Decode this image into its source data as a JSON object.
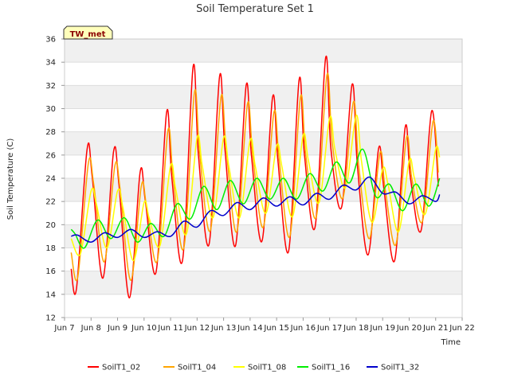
{
  "chart_data": {
    "type": "line",
    "title": "Soil Temperature Set 1",
    "xlabel": "Time",
    "ylabel": "Soil Temperature (C)",
    "site_label": "TW_met",
    "x_range": [
      7,
      22
    ],
    "ylim": [
      12,
      36
    ],
    "yticks": [
      12,
      14,
      16,
      18,
      20,
      22,
      24,
      26,
      28,
      30,
      32,
      34,
      36
    ],
    "xticks": [
      {
        "day": 7,
        "label": "Jun 7"
      },
      {
        "day": 8,
        "label": "Jun 8"
      },
      {
        "day": 9,
        "label": "Jun 9"
      },
      {
        "day": 10,
        "label": "Jun 10"
      },
      {
        "day": 11,
        "label": "Jun 11"
      },
      {
        "day": 12,
        "label": "Jun 12"
      },
      {
        "day": 13,
        "label": "Jun 13"
      },
      {
        "day": 14,
        "label": "Jun 14"
      },
      {
        "day": 15,
        "label": "Jun 15"
      },
      {
        "day": 16,
        "label": "Jun 16"
      },
      {
        "day": 17,
        "label": "Jun 17"
      },
      {
        "day": 18,
        "label": "Jun 18"
      },
      {
        "day": 19,
        "label": "Jun 19"
      },
      {
        "day": 20,
        "label": "Jun 20"
      },
      {
        "day": 21,
        "label": "Jun 21"
      },
      {
        "day": 22,
        "label": "Jun 22"
      }
    ],
    "grid": true,
    "legend_position": "bottom",
    "colors": {
      "band": "#f0f0f0",
      "grid": "#dddddd",
      "axis": "#cccccc"
    },
    "series": [
      {
        "name": "SoilT1_02",
        "color": "#ff0000",
        "points": [
          [
            7.25,
            16.2
          ],
          [
            7.45,
            14.5
          ],
          [
            7.85,
            26.5
          ],
          [
            8.05,
            24.0
          ],
          [
            8.45,
            15.4
          ],
          [
            8.85,
            26.3
          ],
          [
            9.05,
            23.5
          ],
          [
            9.45,
            13.7
          ],
          [
            9.85,
            24.5
          ],
          [
            10.05,
            22.0
          ],
          [
            10.45,
            15.9
          ],
          [
            10.85,
            29.7
          ],
          [
            11.05,
            24.0
          ],
          [
            11.45,
            16.9
          ],
          [
            11.85,
            33.6
          ],
          [
            12.05,
            26.0
          ],
          [
            12.45,
            18.3
          ],
          [
            12.85,
            32.8
          ],
          [
            13.05,
            26.5
          ],
          [
            13.45,
            18.2
          ],
          [
            13.85,
            32.0
          ],
          [
            14.05,
            26.0
          ],
          [
            14.45,
            18.6
          ],
          [
            14.85,
            31.0
          ],
          [
            15.05,
            25.5
          ],
          [
            15.45,
            17.7
          ],
          [
            15.85,
            32.5
          ],
          [
            16.05,
            26.0
          ],
          [
            16.45,
            19.8
          ],
          [
            16.85,
            34.4
          ],
          [
            17.05,
            26.5
          ],
          [
            17.45,
            21.5
          ],
          [
            17.85,
            32.1
          ],
          [
            18.05,
            25.0
          ],
          [
            18.45,
            17.4
          ],
          [
            18.85,
            26.6
          ],
          [
            19.05,
            23.0
          ],
          [
            19.45,
            16.9
          ],
          [
            19.85,
            28.4
          ],
          [
            20.05,
            24.0
          ],
          [
            20.45,
            19.5
          ],
          [
            20.85,
            29.8
          ],
          [
            21.1,
            23.3
          ]
        ]
      },
      {
        "name": "SoilT1_04",
        "color": "#ffa500",
        "points": [
          [
            7.25,
            17.6
          ],
          [
            7.5,
            15.5
          ],
          [
            7.9,
            25.3
          ],
          [
            8.1,
            23.5
          ],
          [
            8.5,
            16.8
          ],
          [
            8.9,
            25.1
          ],
          [
            9.1,
            23.0
          ],
          [
            9.5,
            15.2
          ],
          [
            9.9,
            23.4
          ],
          [
            10.1,
            21.5
          ],
          [
            10.5,
            16.9
          ],
          [
            10.9,
            28.1
          ],
          [
            11.1,
            24.0
          ],
          [
            11.5,
            18.0
          ],
          [
            11.9,
            31.4
          ],
          [
            12.1,
            26.0
          ],
          [
            12.5,
            19.5
          ],
          [
            12.9,
            31.0
          ],
          [
            13.1,
            26.5
          ],
          [
            13.5,
            19.4
          ],
          [
            13.9,
            30.4
          ],
          [
            14.1,
            26.0
          ],
          [
            14.5,
            19.8
          ],
          [
            14.9,
            29.7
          ],
          [
            15.1,
            25.5
          ],
          [
            15.5,
            19.0
          ],
          [
            15.9,
            31.0
          ],
          [
            16.1,
            26.0
          ],
          [
            16.5,
            20.7
          ],
          [
            16.9,
            32.9
          ],
          [
            17.1,
            27.0
          ],
          [
            17.5,
            22.3
          ],
          [
            17.9,
            30.6
          ],
          [
            18.1,
            25.0
          ],
          [
            18.5,
            18.8
          ],
          [
            18.9,
            26.2
          ],
          [
            19.1,
            23.0
          ],
          [
            19.5,
            18.3
          ],
          [
            19.9,
            27.5
          ],
          [
            20.1,
            24.0
          ],
          [
            20.5,
            20.3
          ],
          [
            20.9,
            28.9
          ],
          [
            21.1,
            24.5
          ]
        ]
      },
      {
        "name": "SoilT1_08",
        "color": "#ffff00",
        "points": [
          [
            7.25,
            18.8
          ],
          [
            7.6,
            17.5
          ],
          [
            8.0,
            22.9
          ],
          [
            8.2,
            21.8
          ],
          [
            8.6,
            18.0
          ],
          [
            9.0,
            22.9
          ],
          [
            9.2,
            21.5
          ],
          [
            9.6,
            16.9
          ],
          [
            10.0,
            21.9
          ],
          [
            10.2,
            20.5
          ],
          [
            10.6,
            18.2
          ],
          [
            11.0,
            25.1
          ],
          [
            11.2,
            23.0
          ],
          [
            11.6,
            19.2
          ],
          [
            12.0,
            27.5
          ],
          [
            12.2,
            25.0
          ],
          [
            12.6,
            20.6
          ],
          [
            13.0,
            27.5
          ],
          [
            13.2,
            25.0
          ],
          [
            13.6,
            20.6
          ],
          [
            14.0,
            27.3
          ],
          [
            14.2,
            25.0
          ],
          [
            14.6,
            21.0
          ],
          [
            15.0,
            26.8
          ],
          [
            15.2,
            25.0
          ],
          [
            15.6,
            20.7
          ],
          [
            16.0,
            27.7
          ],
          [
            16.2,
            25.5
          ],
          [
            16.6,
            21.9
          ],
          [
            17.0,
            29.2
          ],
          [
            17.2,
            26.5
          ],
          [
            17.6,
            23.2
          ],
          [
            18.0,
            29.4
          ],
          [
            18.2,
            25.5
          ],
          [
            18.6,
            20.2
          ],
          [
            19.0,
            24.8
          ],
          [
            19.2,
            23.5
          ],
          [
            19.6,
            19.4
          ],
          [
            20.0,
            25.5
          ],
          [
            20.2,
            24.0
          ],
          [
            20.6,
            20.9
          ],
          [
            21.0,
            26.5
          ],
          [
            21.15,
            25.8
          ]
        ]
      },
      {
        "name": "SoilT1_16",
        "color": "#00ee00",
        "points": [
          [
            7.25,
            19.6
          ],
          [
            7.4,
            19.2
          ],
          [
            7.75,
            18.0
          ],
          [
            8.25,
            20.4
          ],
          [
            8.75,
            18.8
          ],
          [
            9.25,
            20.6
          ],
          [
            9.75,
            18.5
          ],
          [
            10.25,
            20.1
          ],
          [
            10.75,
            19.0
          ],
          [
            11.25,
            21.8
          ],
          [
            11.75,
            20.5
          ],
          [
            12.25,
            23.3
          ],
          [
            12.75,
            21.3
          ],
          [
            13.25,
            23.8
          ],
          [
            13.75,
            21.8
          ],
          [
            14.25,
            24.0
          ],
          [
            14.75,
            22.2
          ],
          [
            15.25,
            24.0
          ],
          [
            15.75,
            22.2
          ],
          [
            16.25,
            24.4
          ],
          [
            16.75,
            22.9
          ],
          [
            17.25,
            25.4
          ],
          [
            17.75,
            23.6
          ],
          [
            18.25,
            26.5
          ],
          [
            18.75,
            22.4
          ],
          [
            19.25,
            23.5
          ],
          [
            19.75,
            21.2
          ],
          [
            20.25,
            23.5
          ],
          [
            20.75,
            21.6
          ],
          [
            21.15,
            24.0
          ]
        ]
      },
      {
        "name": "SoilT1_32",
        "color": "#0000cc",
        "points": [
          [
            7.25,
            19.0
          ],
          [
            7.5,
            19.1
          ],
          [
            8.0,
            18.5
          ],
          [
            8.5,
            19.3
          ],
          [
            9.0,
            18.9
          ],
          [
            9.5,
            19.6
          ],
          [
            10.0,
            18.9
          ],
          [
            10.5,
            19.4
          ],
          [
            11.0,
            19.0
          ],
          [
            11.5,
            20.3
          ],
          [
            12.0,
            19.8
          ],
          [
            12.5,
            21.2
          ],
          [
            13.0,
            20.8
          ],
          [
            13.5,
            21.9
          ],
          [
            14.0,
            21.3
          ],
          [
            14.5,
            22.3
          ],
          [
            15.0,
            21.6
          ],
          [
            15.5,
            22.4
          ],
          [
            16.0,
            21.7
          ],
          [
            16.5,
            22.7
          ],
          [
            17.0,
            22.2
          ],
          [
            17.5,
            23.4
          ],
          [
            18.0,
            23.0
          ],
          [
            18.5,
            24.1
          ],
          [
            19.0,
            22.7
          ],
          [
            19.5,
            22.8
          ],
          [
            20.0,
            21.8
          ],
          [
            20.5,
            22.5
          ],
          [
            21.0,
            22.0
          ],
          [
            21.15,
            22.6
          ]
        ]
      }
    ]
  }
}
